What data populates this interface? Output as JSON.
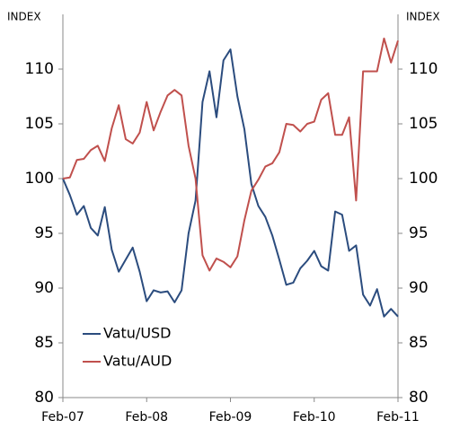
{
  "chart_data": {
    "type": "line",
    "ylabel": "INDEX",
    "y2label": "INDEX",
    "categories": [
      "Feb-07",
      null,
      null,
      null,
      null,
      null,
      null,
      null,
      null,
      null,
      null,
      null,
      "Feb-08",
      null,
      null,
      null,
      null,
      null,
      null,
      null,
      null,
      null,
      null,
      null,
      "Feb-09",
      null,
      null,
      null,
      null,
      null,
      null,
      null,
      null,
      null,
      null,
      null,
      "Feb-10",
      null,
      null,
      null,
      null,
      null,
      null,
      null,
      null,
      null,
      null,
      null,
      "Feb-11"
    ],
    "series": [
      {
        "name": "Vatu/USD",
        "color": "#2b4c7e",
        "values": [
          100,
          98.5,
          96.7,
          97.5,
          95.5,
          94.8,
          97.4,
          93.5,
          91.5,
          92.6,
          93.7,
          91.5,
          88.8,
          89.8,
          89.6,
          89.7,
          88.7,
          89.8,
          95,
          98,
          107,
          109.8,
          105.6,
          110.8,
          111.8,
          107.5,
          104.5,
          99.5,
          97.5,
          96.5,
          94.8,
          92.6,
          90.3,
          90.5,
          91.8,
          92.5,
          93.4,
          92,
          91.6,
          97,
          96.7,
          93.4,
          93.9,
          89.4,
          88.4,
          89.9,
          87.4,
          88.1,
          87.4
        ]
      },
      {
        "name": "Vatu/AUD",
        "color": "#c0504d",
        "values": [
          100,
          100.1,
          101.7,
          101.8,
          102.6,
          103,
          101.6,
          104.6,
          106.7,
          103.6,
          103.2,
          104.2,
          107,
          104.4,
          106.1,
          107.6,
          108.1,
          107.6,
          103,
          100,
          93,
          91.6,
          92.7,
          92.4,
          91.9,
          92.9,
          96.2,
          98.9,
          99.9,
          101.1,
          101.4,
          102.4,
          105,
          104.9,
          104.3,
          105,
          105.2,
          107.2,
          107.8,
          104,
          104,
          105.6,
          98,
          109.8,
          109.8,
          109.8,
          112.8,
          110.6,
          112.6
        ]
      }
    ],
    "ylim": [
      80,
      115
    ],
    "yticks": [
      80,
      85,
      90,
      95,
      100,
      105,
      110
    ],
    "y2lim": [
      80,
      115
    ],
    "y2ticks": [
      80,
      85,
      90,
      95,
      100,
      105,
      110
    ],
    "legend": "lower left"
  }
}
